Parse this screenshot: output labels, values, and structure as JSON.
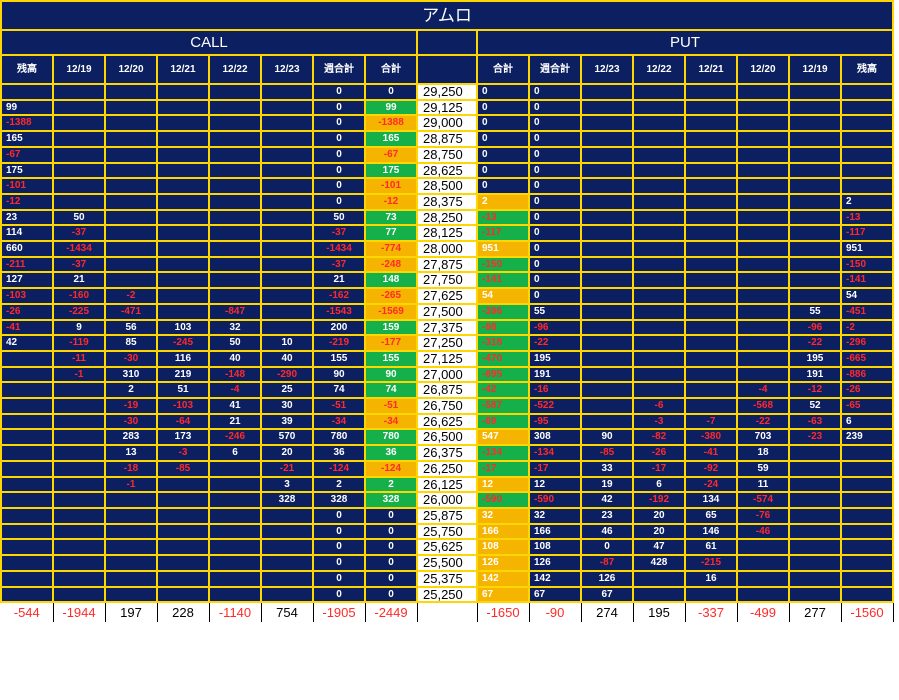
{
  "title": "アムロ",
  "sections": {
    "call": "CALL",
    "put": "PUT"
  },
  "call_headers": [
    "残高",
    "12/19",
    "12/20",
    "12/21",
    "12/22",
    "12/23",
    "週合計",
    "合計"
  ],
  "put_headers": [
    "合計",
    "週合計",
    "12/23",
    "12/22",
    "12/21",
    "12/20",
    "12/19",
    "残高"
  ],
  "rows": [
    {
      "strike": "29,250",
      "call": [
        "",
        "",
        "",
        "",
        "",
        "",
        "0",
        "0"
      ],
      "put": [
        "0",
        "0",
        "",
        "",
        "",
        "",
        "",
        ""
      ]
    },
    {
      "strike": "29,125",
      "call": [
        "99",
        "",
        "",
        "",
        "",
        "",
        "0",
        "99"
      ],
      "put": [
        "0",
        "0",
        "",
        "",
        "",
        "",
        "",
        ""
      ]
    },
    {
      "strike": "29,000",
      "call": [
        "-1388",
        "",
        "",
        "",
        "",
        "",
        "0",
        "-1388"
      ],
      "put": [
        "0",
        "0",
        "",
        "",
        "",
        "",
        "",
        ""
      ]
    },
    {
      "strike": "28,875",
      "call": [
        "165",
        "",
        "",
        "",
        "",
        "",
        "0",
        "165"
      ],
      "put": [
        "0",
        "0",
        "",
        "",
        "",
        "",
        "",
        ""
      ]
    },
    {
      "strike": "28,750",
      "call": [
        "-67",
        "",
        "",
        "",
        "",
        "",
        "0",
        "-67"
      ],
      "put": [
        "0",
        "0",
        "",
        "",
        "",
        "",
        "",
        ""
      ]
    },
    {
      "strike": "28,625",
      "call": [
        "175",
        "",
        "",
        "",
        "",
        "",
        "0",
        "175"
      ],
      "put": [
        "0",
        "0",
        "",
        "",
        "",
        "",
        "",
        ""
      ]
    },
    {
      "strike": "28,500",
      "call": [
        "-101",
        "",
        "",
        "",
        "",
        "",
        "0",
        "-101"
      ],
      "put": [
        "0",
        "0",
        "",
        "",
        "",
        "",
        "",
        ""
      ]
    },
    {
      "strike": "28,375",
      "call": [
        "-12",
        "",
        "",
        "",
        "",
        "",
        "0",
        "-12"
      ],
      "put": [
        "2",
        "0",
        "",
        "",
        "",
        "",
        "",
        "2"
      ]
    },
    {
      "strike": "28,250",
      "call": [
        "23",
        "50",
        "",
        "",
        "",
        "",
        "50",
        "73"
      ],
      "put": [
        "-13",
        "0",
        "",
        "",
        "",
        "",
        "",
        "-13"
      ]
    },
    {
      "strike": "28,125",
      "call": [
        "114",
        "-37",
        "",
        "",
        "",
        "",
        "-37",
        "77"
      ],
      "put": [
        "-117",
        "0",
        "",
        "",
        "",
        "",
        "",
        "-117"
      ]
    },
    {
      "strike": "28,000",
      "call": [
        "660",
        "-1434",
        "",
        "",
        "",
        "",
        "-1434",
        "-774"
      ],
      "put": [
        "951",
        "0",
        "",
        "",
        "",
        "",
        "",
        "951"
      ]
    },
    {
      "strike": "27,875",
      "call": [
        "-211",
        "-37",
        "",
        "",
        "",
        "",
        "-37",
        "-248"
      ],
      "put": [
        "-150",
        "0",
        "",
        "",
        "",
        "",
        "",
        "-150"
      ]
    },
    {
      "strike": "27,750",
      "call": [
        "127",
        "21",
        "",
        "",
        "",
        "",
        "21",
        "148"
      ],
      "put": [
        "-141",
        "0",
        "",
        "",
        "",
        "",
        "",
        "-141"
      ]
    },
    {
      "strike": "27,625",
      "call": [
        "-103",
        "-160",
        "-2",
        "",
        "",
        "",
        "-162",
        "-265"
      ],
      "put": [
        "54",
        "0",
        "",
        "",
        "",
        "",
        "",
        "54"
      ]
    },
    {
      "strike": "27,500",
      "call": [
        "-26",
        "-225",
        "-471",
        "",
        "-847",
        "",
        "-1543",
        "-1569"
      ],
      "put": [
        "-396",
        "55",
        "",
        "",
        "",
        "",
        "55",
        "-451"
      ]
    },
    {
      "strike": "27,375",
      "call": [
        "-41",
        "9",
        "56",
        "103",
        "32",
        "",
        "200",
        "159"
      ],
      "put": [
        "-98",
        "-96",
        "",
        "",
        "",
        "",
        "-96",
        "-2"
      ]
    },
    {
      "strike": "27,250",
      "call": [
        "42",
        "-119",
        "85",
        "-245",
        "50",
        "10",
        "-219",
        "-177"
      ],
      "put": [
        "-318",
        "-22",
        "",
        "",
        "",
        "",
        "-22",
        "-296"
      ]
    },
    {
      "strike": "27,125",
      "call": [
        "",
        "-11",
        "-30",
        "116",
        "40",
        "40",
        "155",
        "155"
      ],
      "put": [
        "-470",
        "195",
        "",
        "",
        "",
        "",
        "195",
        "-665"
      ]
    },
    {
      "strike": "27,000",
      "call": [
        "",
        "-1",
        "310",
        "219",
        "-148",
        "-290",
        "90",
        "90"
      ],
      "put": [
        "-695",
        "191",
        "",
        "",
        "",
        "",
        "191",
        "-886"
      ]
    },
    {
      "strike": "26,875",
      "call": [
        "",
        "",
        "2",
        "51",
        "-4",
        "25",
        "74",
        "74"
      ],
      "put": [
        "-42",
        "-16",
        "",
        "",
        "",
        "-4",
        "-12",
        "-26"
      ]
    },
    {
      "strike": "26,750",
      "call": [
        "",
        "",
        "-19",
        "-103",
        "41",
        "30",
        "-51",
        "-51"
      ],
      "put": [
        "-587",
        "-522",
        "",
        "-6",
        "",
        "-568",
        "52",
        "-65"
      ]
    },
    {
      "strike": "26,625",
      "call": [
        "",
        "",
        "-30",
        "-64",
        "21",
        "39",
        "-34",
        "-34"
      ],
      "put": [
        "-89",
        "-95",
        "",
        "-3",
        "-7",
        "-22",
        "-63",
        "6"
      ]
    },
    {
      "strike": "26,500",
      "call": [
        "",
        "",
        "283",
        "173",
        "-246",
        "570",
        "780",
        "780"
      ],
      "put": [
        "547",
        "308",
        "90",
        "-82",
        "-380",
        "703",
        "-23",
        "239"
      ]
    },
    {
      "strike": "26,375",
      "call": [
        "",
        "",
        "13",
        "-3",
        "6",
        "20",
        "36",
        "36"
      ],
      "put": [
        "-134",
        "-134",
        "-85",
        "-26",
        "-41",
        "18",
        "",
        ""
      ]
    },
    {
      "strike": "26,250",
      "call": [
        "",
        "",
        "-18",
        "-85",
        "",
        "-21",
        "-124",
        "-124"
      ],
      "put": [
        "-17",
        "-17",
        "33",
        "-17",
        "-92",
        "59",
        "",
        ""
      ]
    },
    {
      "strike": "26,125",
      "call": [
        "",
        "",
        "-1",
        "",
        "",
        "3",
        "2",
        "2"
      ],
      "put": [
        "12",
        "12",
        "19",
        "6",
        "-24",
        "11",
        "",
        ""
      ]
    },
    {
      "strike": "26,000",
      "call": [
        "",
        "",
        "",
        "",
        "",
        "328",
        "328",
        "328"
      ],
      "put": [
        "-590",
        "-590",
        "42",
        "-192",
        "134",
        "-574",
        "",
        ""
      ]
    },
    {
      "strike": "25,875",
      "call": [
        "",
        "",
        "",
        "",
        "",
        "",
        "0",
        "0"
      ],
      "put": [
        "32",
        "32",
        "23",
        "20",
        "65",
        "-76",
        "",
        ""
      ]
    },
    {
      "strike": "25,750",
      "call": [
        "",
        "",
        "",
        "",
        "",
        "",
        "0",
        "0"
      ],
      "put": [
        "166",
        "166",
        "46",
        "20",
        "146",
        "-46",
        "",
        ""
      ]
    },
    {
      "strike": "25,625",
      "call": [
        "",
        "",
        "",
        "",
        "",
        "",
        "0",
        "0"
      ],
      "put": [
        "108",
        "108",
        "0",
        "47",
        "61",
        "",
        "",
        ""
      ]
    },
    {
      "strike": "25,500",
      "call": [
        "",
        "",
        "",
        "",
        "",
        "",
        "0",
        "0"
      ],
      "put": [
        "126",
        "126",
        "-87",
        "428",
        "-215",
        "",
        "",
        ""
      ]
    },
    {
      "strike": "25,375",
      "call": [
        "",
        "",
        "",
        "",
        "",
        "",
        "0",
        "0"
      ],
      "put": [
        "142",
        "142",
        "126",
        "",
        "16",
        "",
        "",
        ""
      ]
    },
    {
      "strike": "25,250",
      "call": [
        "",
        "",
        "",
        "",
        "",
        "",
        "0",
        "0"
      ],
      "put": [
        "67",
        "67",
        "67",
        "",
        "",
        "",
        "",
        ""
      ]
    }
  ],
  "totals": {
    "call": [
      "-544",
      "-1944",
      "197",
      "228",
      "-1140",
      "754",
      "-1905",
      "-2449"
    ],
    "put": [
      "-1650",
      "-90",
      "274",
      "195",
      "-337",
      "-499",
      "277",
      "-1560"
    ]
  },
  "colors": {
    "navy": "#0c1f61",
    "grid": "#ffd700",
    "positive_total": "#16b04a",
    "negative_total": "#f5b400",
    "negative_text": "#ff2a2a"
  }
}
